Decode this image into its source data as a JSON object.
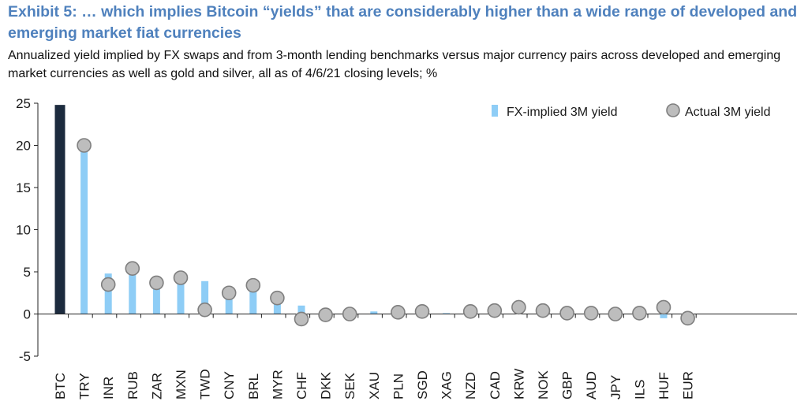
{
  "header": {
    "title": "Exhibit 5: … which implies Bitcoin “yields” that are considerably higher than a wide range of developed and emerging market fiat currencies",
    "subtitle": "Annualized yield implied by FX swaps and from 3-month lending benchmarks versus major currency pairs across developed and emerging market currencies as well as gold and silver, all as of 4/6/21 closing levels; %"
  },
  "colors": {
    "fx_bar": "#8ecdf6",
    "btc_bar": "#1c2b3e",
    "dot_fill": "#bdbdbd",
    "dot_stroke": "#7f7f7f",
    "axis": "#222222"
  },
  "chart_data": {
    "type": "bar",
    "categories": [
      "BTC",
      "TRY",
      "INR",
      "RUB",
      "ZAR",
      "MXN",
      "TWD",
      "CNY",
      "BRL",
      "MYR",
      "CHF",
      "DKK",
      "SEK",
      "XAU",
      "PLN",
      "SGD",
      "XAG",
      "NZD",
      "CAD",
      "KRW",
      "NOK",
      "GBP",
      "AUD",
      "JPY",
      "ILS",
      "HUF",
      "EUR"
    ],
    "series": [
      {
        "name": "FX-implied 3M yield",
        "kind": "bar",
        "values": [
          24.8,
          19.6,
          4.8,
          4.9,
          3.2,
          4.0,
          3.9,
          1.8,
          3.3,
          1.4,
          1.0,
          0.0,
          -0.1,
          0.3,
          0.2,
          0.3,
          0.1,
          0.3,
          0.4,
          0.1,
          0.3,
          0.0,
          0.0,
          -0.1,
          0.1,
          -0.5,
          -0.4
        ]
      },
      {
        "name": "Actual 3M yield",
        "kind": "marker",
        "values": [
          null,
          20.0,
          3.5,
          5.4,
          3.7,
          4.3,
          0.5,
          2.5,
          3.4,
          1.9,
          -0.6,
          -0.1,
          0.0,
          null,
          0.2,
          0.3,
          null,
          0.3,
          0.4,
          0.8,
          0.4,
          0.1,
          0.1,
          0.0,
          0.1,
          0.8,
          -0.5
        ]
      }
    ],
    "ylim": [
      -5,
      25
    ],
    "yticks": [
      -5,
      0,
      5,
      10,
      15,
      20,
      25
    ],
    "grid": false,
    "legend_position": "top-right"
  }
}
